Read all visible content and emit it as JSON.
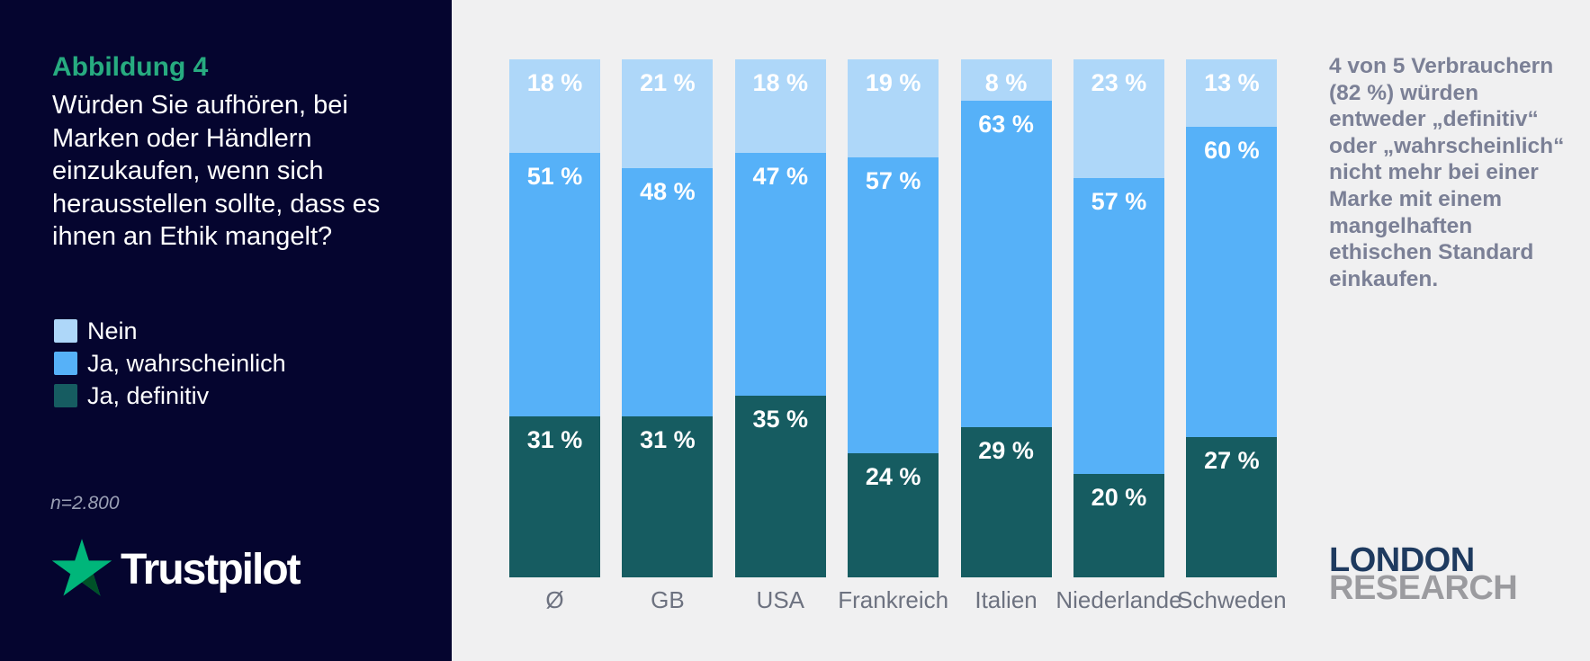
{
  "panel": {
    "figure_label": "Abbildung 4",
    "question": "Würden Sie aufhören, bei Marken oder Händlern einzukaufen, wenn sich herausstellen sollte, dass es ihnen an Ethik mangelt?",
    "sample_size": "n=2.800",
    "brand": "Trustpilot"
  },
  "legend": [
    {
      "label": "Nein",
      "color": "#AED7F9"
    },
    {
      "label": "Ja, wahrscheinlich",
      "color": "#56B1F8"
    },
    {
      "label": "Ja, definitiv",
      "color": "#165C61"
    }
  ],
  "chart_data": {
    "type": "bar",
    "stacked": true,
    "unit": "%",
    "ylim": [
      0,
      100
    ],
    "grid": false,
    "legend_position": "left-panel",
    "categories": [
      "Ø",
      "GB",
      "USA",
      "Frankreich",
      "Italien",
      "Niederlande",
      "Schweden"
    ],
    "series": [
      {
        "name": "Nein",
        "color": "#AED7F9",
        "values": [
          18,
          21,
          18,
          19,
          8,
          23,
          13
        ]
      },
      {
        "name": "Ja, wahrscheinlich",
        "color": "#56B1F8",
        "values": [
          51,
          48,
          47,
          57,
          63,
          57,
          60
        ]
      },
      {
        "name": "Ja, definitiv",
        "color": "#165C61",
        "values": [
          31,
          31,
          35,
          24,
          29,
          20,
          27
        ]
      }
    ],
    "value_label_format": "{v} %"
  },
  "aside": {
    "callout": "4 von 5 Verbrauchern\n(82 %) würden\nentweder „definitiv“\noder „wahrscheinlich“\nnicht mehr bei einer\nMarke mit einem\nmangelhaften\nethischen Standard\neinkaufen.",
    "logo_line1": "LONDON",
    "logo_line2": "RESEARCH"
  },
  "colors": {
    "panel_background": "#05052F",
    "chart_background": "#F0F0F1",
    "figure_label_green": "#27AB80",
    "trustpilot_star_green": "#00B67A",
    "trustpilot_star_shadow": "#005128",
    "nein_light_blue": "#AED7F9",
    "wahrscheinlich_blue": "#56B1F8",
    "definitiv_teal": "#165C61",
    "axis_label_gray": "#6D7280",
    "callout_gray": "#7B8096",
    "logo_navy": "#1E3A5F",
    "logo_gray": "#9B9B9F"
  }
}
